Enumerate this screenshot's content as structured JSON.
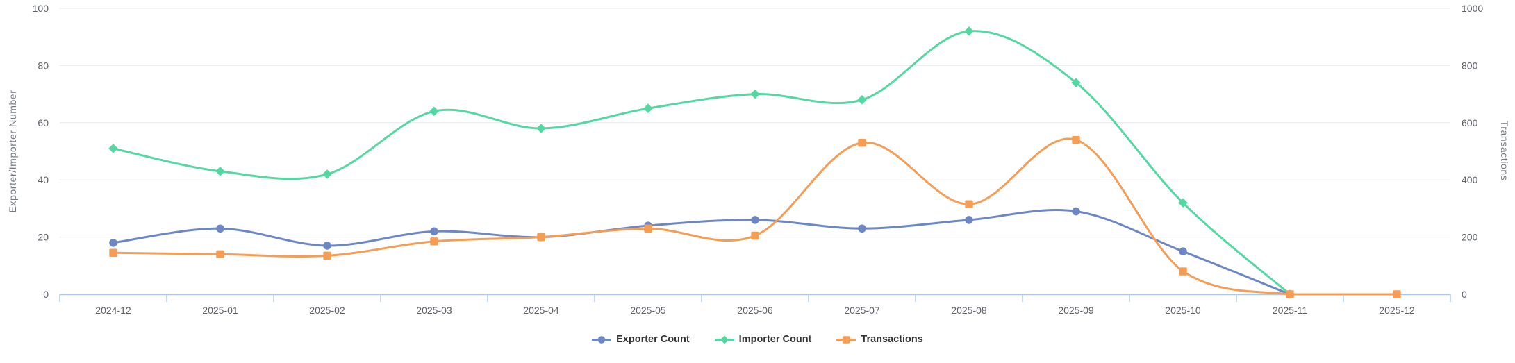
{
  "chart_data": {
    "type": "line",
    "smooth": true,
    "grid": true,
    "legend_position": "bottom",
    "categories": [
      "2024-12",
      "2025-01",
      "2025-02",
      "2025-03",
      "2025-04",
      "2025-05",
      "2025-06",
      "2025-07",
      "2025-08",
      "2025-09",
      "2025-10",
      "2025-11",
      "2025-12"
    ],
    "series": [
      {
        "name": "Exporter Count",
        "color": "#6c87c3",
        "marker": "circle",
        "axis": "left",
        "values": [
          18,
          23,
          17,
          22,
          20,
          24,
          26,
          23,
          26,
          29,
          15,
          0,
          null
        ]
      },
      {
        "name": "Importer Count",
        "color": "#53d8a2",
        "marker": "diamond",
        "axis": "left",
        "values": [
          51,
          43,
          42,
          64,
          58,
          65,
          70,
          68,
          92,
          74,
          32,
          0,
          null
        ]
      },
      {
        "name": "Transactions",
        "color": "#f59c55",
        "marker": "square",
        "axis": "right",
        "values": [
          145,
          140,
          135,
          185,
          200,
          230,
          205,
          530,
          315,
          540,
          80,
          0,
          0
        ]
      }
    ],
    "left_axis": {
      "title": "Exporter/Importer Number",
      "min": 0,
      "max": 100,
      "ticks": [
        0,
        20,
        40,
        60,
        80,
        100
      ]
    },
    "right_axis": {
      "title": "Transactions",
      "min": 0,
      "max": 1000,
      "ticks": [
        0,
        200,
        400,
        600,
        800,
        1000
      ]
    }
  },
  "colors": {
    "background": "#ffffff",
    "gridline": "#e7e7e7",
    "axis_line": "#aec9e5",
    "tick_label": "#5b5f66",
    "axis_title": "#767a80",
    "legend_text": "#333333"
  }
}
